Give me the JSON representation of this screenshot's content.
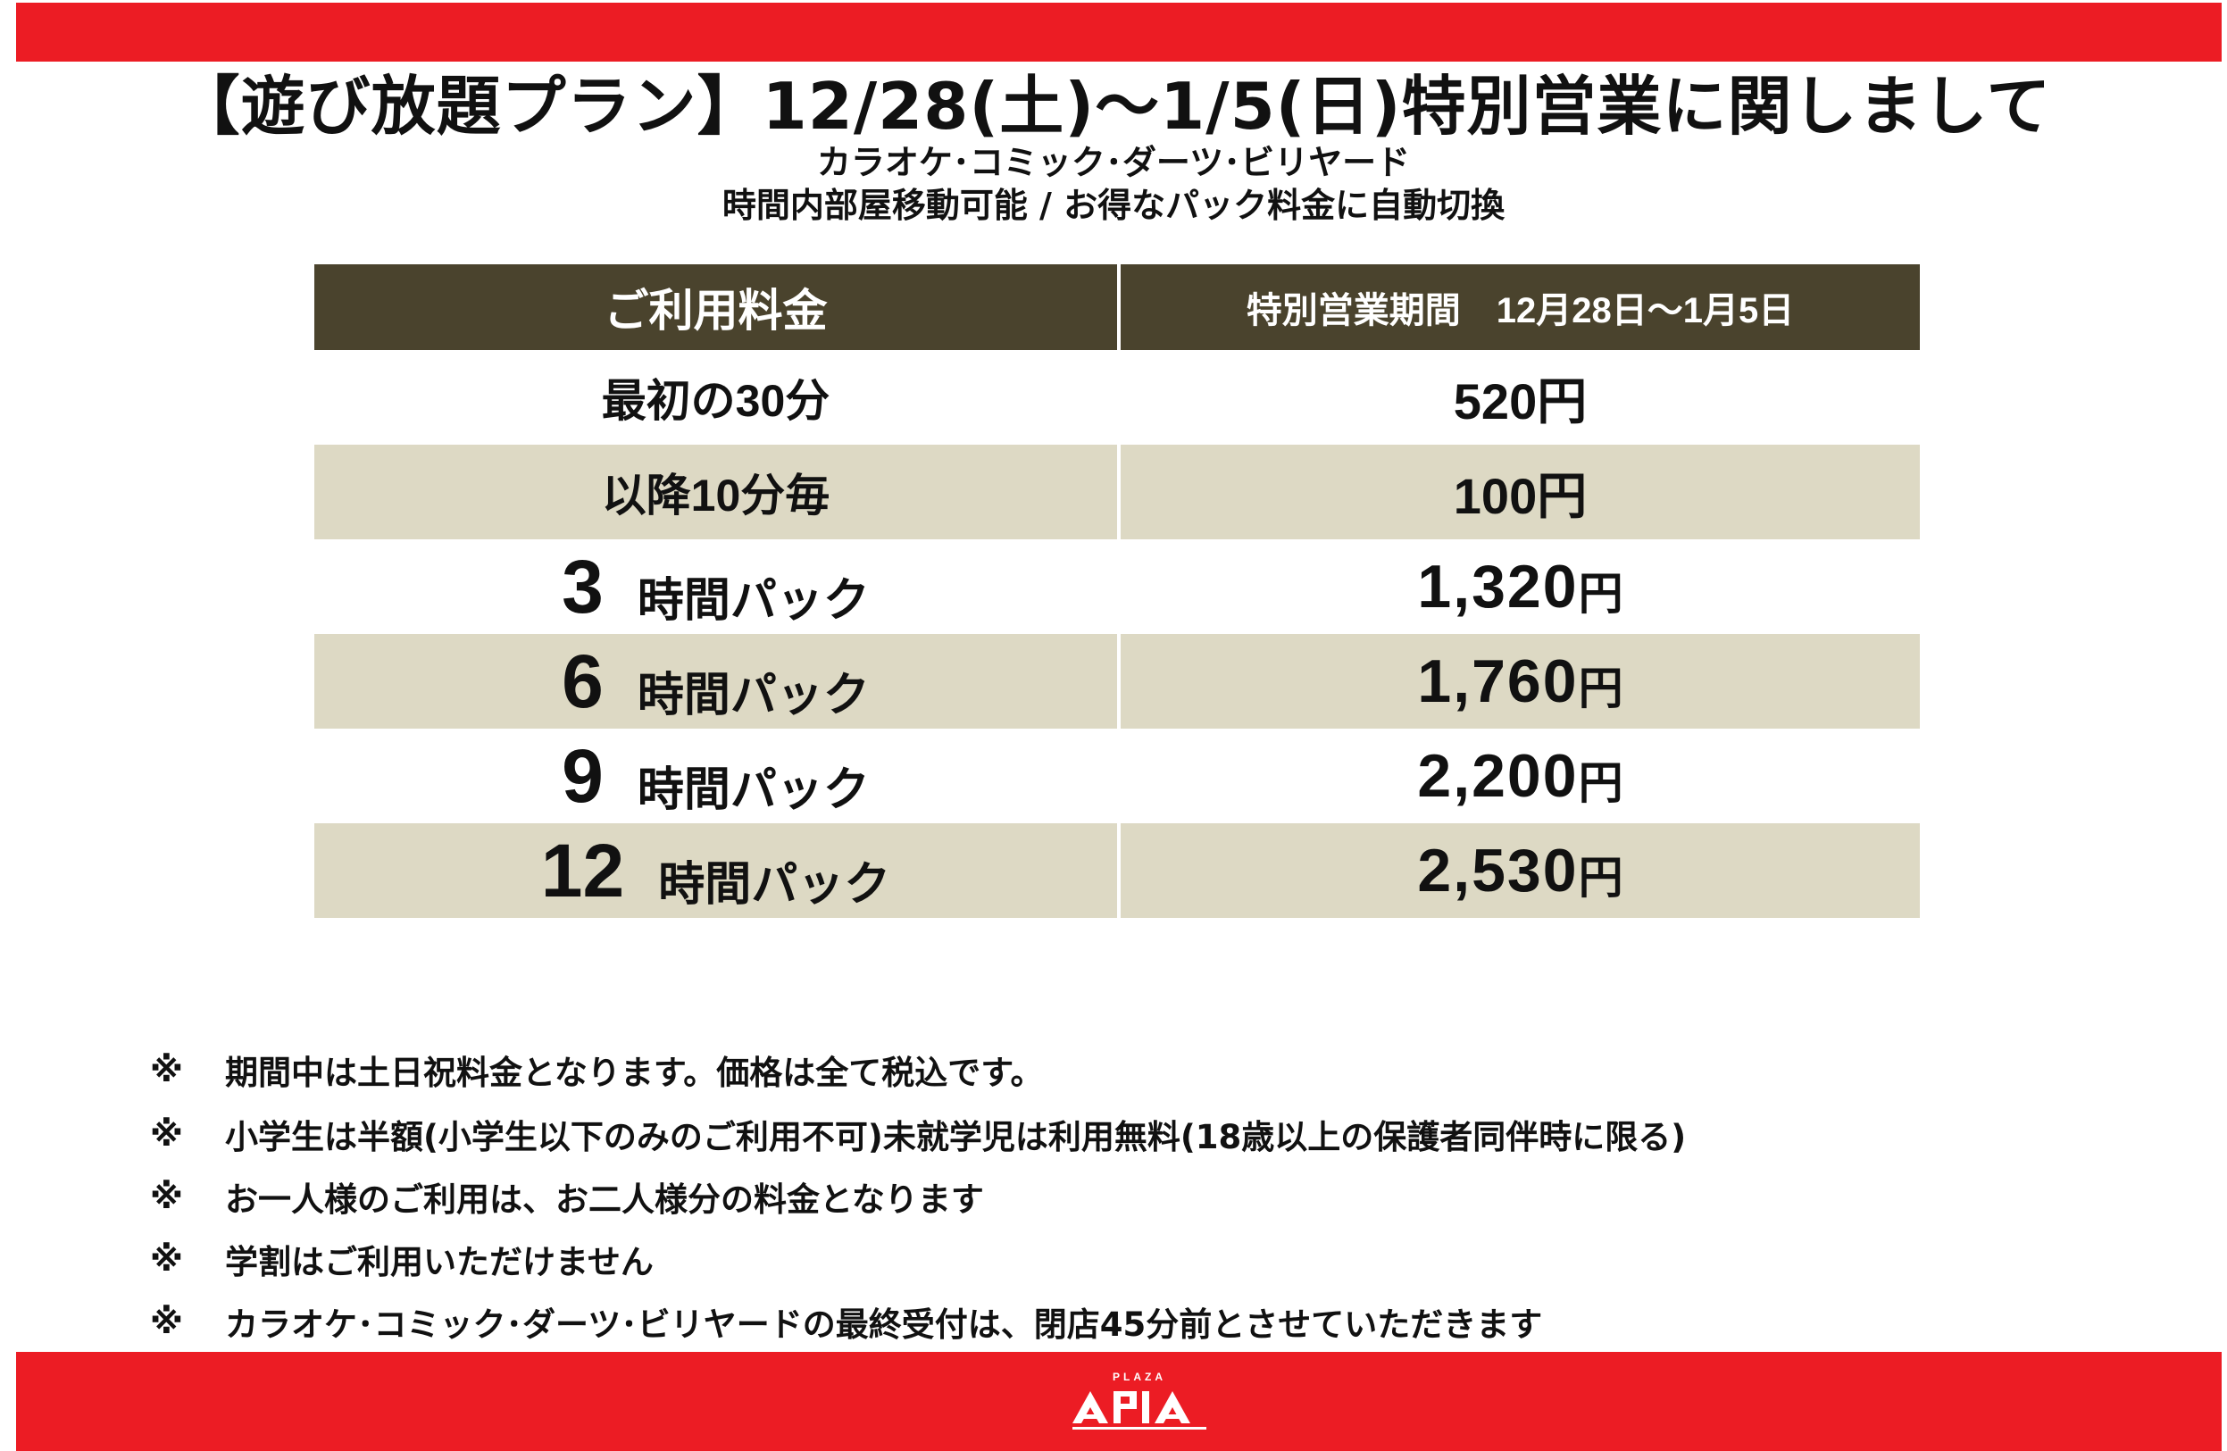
{
  "title": "【遊び放題プラン】12/28(土)〜1/5(日)特別営業に関しまして",
  "subtitle_1": "カラオケ･コミック･ダーツ･ビリヤード",
  "subtitle_2": "時間内部屋移動可能 / お得なパック料金に自動切換",
  "table": {
    "header_left": "ご利用料金",
    "header_right": "特別営業期間　12月28日〜1月5日",
    "rows": [
      {
        "label": "最初の30分",
        "price": "520円"
      },
      {
        "label": "以降10分毎",
        "price": "100円"
      },
      {
        "hours": "3",
        "pack_label": "時間パック",
        "price_num": "1,320",
        "unit": "円"
      },
      {
        "hours": "6",
        "pack_label": "時間パック",
        "price_num": "1,760",
        "unit": "円"
      },
      {
        "hours": "9",
        "pack_label": "時間パック",
        "price_num": "2,200",
        "unit": "円"
      },
      {
        "hours": "12",
        "pack_label": "時間パック",
        "price_num": "2,530",
        "unit": "円"
      }
    ]
  },
  "notes": {
    "mark": "※",
    "items": [
      "期間中は土日祝料金となります。価格は全て税込です。",
      "小学生は半額(小学生以下のみのご利用不可)未就学児は利用無料(18歳以上の保護者同伴時に限る)",
      "お一人様のご利用は、お二人様分の料金となります",
      "学割はご利用いただけません",
      "カラオケ･コミック･ダーツ･ビリヤードの最終受付は、閉店45分前とさせていただきます"
    ]
  },
  "logo": {
    "small_text": "PLAZA",
    "main_text": "APIA"
  },
  "colors": {
    "brand_red": "#ec1c24",
    "header_bg": "#4a432d",
    "shaded_row": "#ddd9c4"
  }
}
